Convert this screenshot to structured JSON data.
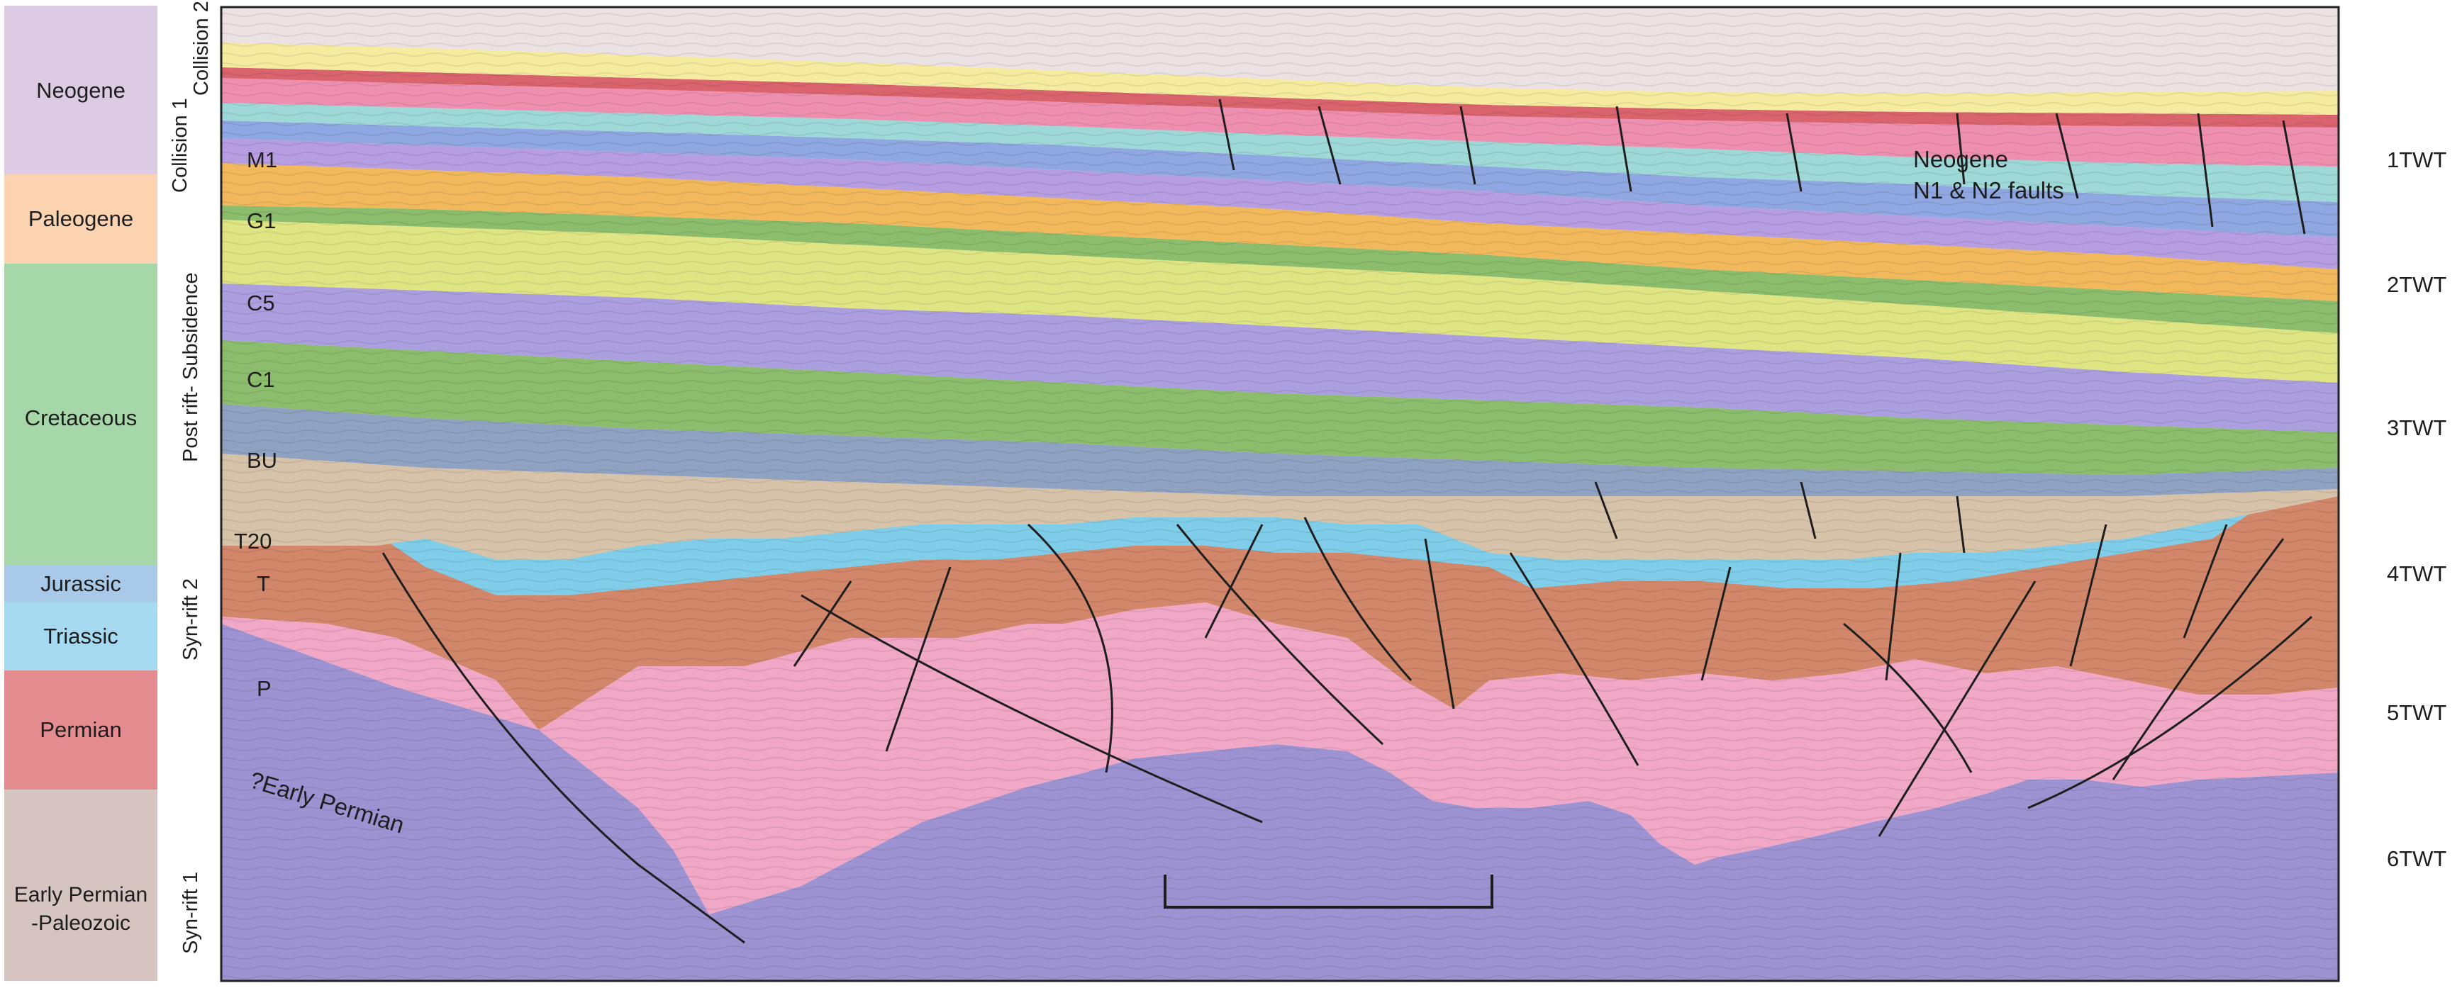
{
  "periods": [
    {
      "label": "Neogene",
      "color": "#dccbe3"
    },
    {
      "label": "Paleogene",
      "color": "#fbd3b0"
    },
    {
      "label": "Cretaceous",
      "color": "#a6d7a8"
    },
    {
      "label": "Jurassic",
      "color": "#a9c9e8"
    },
    {
      "label": "Triassic",
      "color": "#a6daf1"
    },
    {
      "label": "Permian",
      "color": "#e58c91"
    },
    {
      "label": "Early Permian",
      "label2": "-Paleozoic",
      "color": "#d6c4c1"
    }
  ],
  "tectonic_phases": [
    "Collision 2",
    "Collision 1",
    "Post rift- Subsidence",
    "Syn-rift 2",
    "Syn-rift 1"
  ],
  "horizons": [
    "M1",
    "G1",
    "C5",
    "C1",
    "BU",
    "T20",
    "T",
    "P"
  ],
  "units": {
    "early_permian": "?Early Permian",
    "neogene_line1": "Neogene",
    "neogene_line2": "N1 & N2 faults"
  },
  "twt_labels": [
    "1TWT",
    "2TWT",
    "3TWT",
    "4TWT",
    "5TWT",
    "6TWT"
  ],
  "layer_colors": {
    "basement": "#ece2e4",
    "early_permian": "#9d93d3",
    "permian_pink": "#f0a8c6",
    "triassic_brown": "#d2876b",
    "jurassic_blue": "#7fcde8",
    "bu_tan": "#d7c3aa",
    "c1_slate": "#8fa2c2",
    "cret_green": "#8cbd6c",
    "c5_lavender": "#ab9fe0",
    "cret_yellow": "#dfe583",
    "g1_orange": "#f1b95b",
    "paleogene_purple": "#b79ee2",
    "m1_blue": "#8fa8e1",
    "neogene_teal": "#9ed9d8",
    "neogene_pink": "#ef8fb0",
    "top_red": "#d9646e",
    "seabed_yellow": "#f5ec9f"
  }
}
